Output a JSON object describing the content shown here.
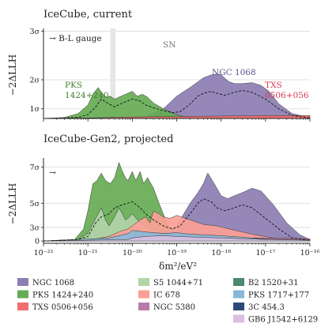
{
  "chart_data": [
    {
      "type": "area",
      "title": "IceCube, current",
      "ylabel": "−2ΔLLH",
      "yticks": [
        {
          "label": "1σ",
          "value": 1
        },
        {
          "label": "2σ",
          "value": 4
        },
        {
          "label": "3σ",
          "value": 9
        }
      ],
      "ylim": [
        0,
        9.3
      ],
      "xlim": [
        1e-22,
        1e-16
      ],
      "xscale": "log",
      "grid": "horizontal",
      "annotations": {
        "gauge": "→ B-L gauge",
        "sn": "SN",
        "ngc": "NGC 1068",
        "pks_line1": "PKS",
        "pks_line2": "1424+240",
        "txs_line1": "TXS",
        "txs_line2": "0506+056"
      },
      "sn_band": [
        3.2e-21,
        4.2e-21
      ],
      "series": [
        {
          "name": "NGC 1068",
          "color": "#8c7eb3",
          "x": [
            1e-22,
            1e-20,
            2e-20,
            5e-20,
            1e-19,
            2e-19,
            4e-19,
            6e-19,
            8e-19,
            1e-18,
            1.5e-18,
            2e-18,
            3e-18,
            5e-18,
            8e-18,
            1.2e-17,
            2e-17,
            4e-17,
            1e-16
          ],
          "y": [
            0,
            0,
            0.2,
            1.0,
            2.3,
            3.2,
            4.2,
            4.5,
            4.6,
            4.5,
            3.8,
            3.6,
            3.6,
            3.7,
            3.4,
            2.8,
            1.5,
            0.5,
            0.1
          ]
        },
        {
          "name": "PKS 1424+240",
          "color": "#66ab54",
          "x": [
            1e-22,
            3e-22,
            6e-22,
            1e-21,
            1.3e-21,
            1.7e-21,
            2.1e-21,
            2.6e-21,
            3.2e-21,
            4e-21,
            5e-21,
            7e-21,
            1e-20,
            1.3e-20,
            1.7e-20,
            2.2e-20,
            3e-20,
            5e-20,
            1e-19,
            2e-19
          ],
          "y": [
            0,
            0.1,
            0.5,
            1.4,
            2.5,
            3.2,
            2.6,
            2.2,
            2.3,
            2.0,
            2.2,
            2.5,
            2.8,
            2.3,
            2.5,
            2.2,
            1.6,
            1.0,
            0.4,
            0
          ]
        },
        {
          "name": "TXS 0506+056",
          "color": "#f26e6e",
          "x": [
            1e-22,
            1e-21,
            1e-20,
            1e-19,
            1e-18,
            1e-17,
            1e-16
          ],
          "y": [
            0,
            0.05,
            0.15,
            0.2,
            0.25,
            0.3,
            0.3
          ]
        }
      ],
      "combined_dashed": {
        "x": [
          1e-22,
          6e-22,
          1e-21,
          1.5e-21,
          2e-21,
          3e-21,
          4e-21,
          6e-21,
          1e-20,
          1.5e-20,
          2e-20,
          3e-20,
          5e-20,
          8e-20,
          1.2e-19,
          2e-19,
          3e-19,
          4e-19,
          6e-19,
          8e-19,
          1.2e-18,
          2e-18,
          3e-18,
          5e-18,
          1e-17,
          2e-17,
          4e-17,
          1e-16
        ],
        "y": [
          0,
          0.1,
          0.4,
          1.2,
          2.0,
          1.5,
          1.2,
          1.6,
          2.0,
          1.8,
          1.4,
          1.1,
          0.8,
          0.6,
          0.7,
          1.5,
          2.3,
          2.6,
          2.8,
          2.6,
          2.4,
          2.7,
          2.9,
          2.7,
          2.0,
          1.0,
          0.3,
          0.05
        ]
      }
    },
    {
      "type": "area",
      "title": "IceCube-Gen2, projected",
      "ylabel": "−2ΔLLH",
      "xlabel": "δm²/eV²",
      "yticks": [
        {
          "label": "0",
          "value": 0
        },
        {
          "label": "3σ",
          "value": 9
        },
        {
          "label": "5σ",
          "value": 25
        },
        {
          "label": "7σ",
          "value": 49
        }
      ],
      "ylim": [
        -1.5,
        55
      ],
      "xlim": [
        1e-22,
        1e-16
      ],
      "xscale": "log",
      "xtick_labels": [
        "10⁻²²",
        "10⁻²¹",
        "10⁻²⁰",
        "10⁻¹⁹",
        "10⁻¹⁸",
        "10⁻¹⁷",
        "10⁻¹⁶"
      ],
      "grid": "horizontal",
      "annotations": {
        "gauge": "→"
      },
      "series": [
        {
          "name": "NGC 1068",
          "color": "#8c7eb3",
          "x": [
            1e-22,
            1e-20,
            3e-20,
            1e-19,
            2e-19,
            3e-19,
            4e-19,
            5e-19,
            7e-19,
            1e-18,
            1.4e-18,
            2e-18,
            3e-18,
            5e-18,
            8e-18,
            1.5e-17,
            3e-17,
            6e-17,
            1e-16
          ],
          "y": [
            0,
            0,
            2,
            10,
            25,
            32,
            38,
            45,
            38,
            30,
            28,
            30,
            32,
            35,
            33,
            24,
            12,
            4,
            1
          ]
        },
        {
          "name": "PKS 1424+240",
          "color": "#66ab54",
          "x": [
            1e-22,
            5e-22,
            8e-22,
            1e-21,
            1.3e-21,
            1.6e-21,
            2e-21,
            2.5e-21,
            3.2e-21,
            4e-21,
            5e-21,
            6e-21,
            7e-21,
            8e-21,
            1e-20,
            1.2e-20,
            1.5e-20,
            1.8e-20,
            2.2e-20,
            3e-20,
            4e-20,
            6e-20,
            1e-19,
            2e-19
          ],
          "y": [
            0,
            1,
            8,
            20,
            38,
            40,
            45,
            40,
            38,
            42,
            52,
            46,
            42,
            40,
            46,
            40,
            46,
            38,
            42,
            35,
            25,
            12,
            3,
            0
          ]
        },
        {
          "name": "S5 1044+71",
          "color": "#b2d4a8",
          "x": [
            1e-22,
            6e-22,
            1e-21,
            1.5e-21,
            2e-21,
            2.5e-21,
            3e-21,
            4e-21,
            5e-21,
            6e-21,
            7e-21,
            8e-21,
            1e-20,
            1.5e-20,
            2e-20,
            3e-20,
            5e-20,
            1e-19
          ],
          "y": [
            0,
            1,
            5,
            15,
            22,
            14,
            10,
            16,
            22,
            18,
            14,
            15,
            18,
            12,
            10,
            6,
            2,
            0
          ]
        },
        {
          "name": "IC 678",
          "color": "#fb9f96",
          "x": [
            1e-22,
            1e-21,
            3e-21,
            5e-21,
            8e-21,
            1e-20,
            1.5e-20,
            2e-20,
            2.5e-20,
            3e-20,
            4e-20,
            5e-20,
            7e-20,
            1e-19,
            2e-19,
            4e-19,
            8e-19,
            1.5e-18,
            3e-18,
            6e-18,
            1.5e-17,
            4e-17,
            1e-16
          ],
          "y": [
            0,
            0.5,
            3,
            6,
            8,
            10,
            14,
            16,
            12,
            20,
            18,
            16,
            15,
            17,
            14,
            11,
            10,
            8,
            6,
            4,
            2,
            1,
            0.5
          ]
        },
        {
          "name": "NGC 5380",
          "color": "#b87ba6",
          "x": [
            1e-22,
            1e-20,
            1e-19,
            1e-18,
            1e-17,
            1e-16
          ],
          "y": [
            0,
            0.5,
            1.5,
            2,
            2,
            1.5
          ]
        },
        {
          "name": "B2 1520+31",
          "color": "#4a8a6e",
          "x": [
            1e-22,
            1e-16
          ],
          "y": [
            0,
            0
          ]
        },
        {
          "name": "PKS 1717+177",
          "color": "#87b8d8",
          "x": [
            1e-22,
            3e-21,
            8e-21,
            1e-20,
            2e-20,
            5e-20,
            1e-19,
            2e-19,
            5e-19,
            1e-18,
            3e-18,
            1e-17,
            1e-16
          ],
          "y": [
            0,
            2,
            5,
            7,
            6,
            5,
            5.5,
            4.5,
            4,
            3.5,
            2.5,
            1.2,
            0.5
          ]
        },
        {
          "name": "3C 454.3",
          "color": "#2d4a7a",
          "x": [
            1e-22,
            1e-16
          ],
          "y": [
            0,
            0
          ]
        },
        {
          "name": "GB6 J1542+6129",
          "color": "#d8bfe0",
          "x": [
            1e-22,
            8e-21,
            1e-20,
            2e-20,
            5e-20,
            1e-19,
            3e-19,
            1e-18,
            3e-18,
            1e-17,
            1e-16
          ],
          "y": [
            0,
            1,
            2,
            3,
            3.5,
            3,
            2.5,
            2,
            1.5,
            1,
            0.5
          ]
        }
      ],
      "combined_dashed": {
        "x": [
          1e-22,
          6e-22,
          1e-21,
          1.5e-21,
          2e-21,
          3e-21,
          4e-21,
          6e-21,
          1e-20,
          1.5e-20,
          2e-20,
          3e-20,
          5e-20,
          8e-20,
          1.2e-19,
          2e-19,
          3e-19,
          4e-19,
          6e-19,
          8e-19,
          1.2e-18,
          2e-18,
          3e-18,
          5e-18,
          1e-17,
          2e-17,
          4e-17,
          1e-16
        ],
        "y": [
          0,
          1,
          3,
          12,
          16,
          18,
          22,
          24,
          26,
          22,
          18,
          14,
          10,
          8,
          10,
          18,
          25,
          28,
          26,
          22,
          20,
          22,
          24,
          22,
          15,
          8,
          2,
          0.5
        ]
      }
    }
  ],
  "legend": {
    "entries": [
      {
        "label": "NGC 1068",
        "color": "#8c7eb3"
      },
      {
        "label": "PKS 1424+240",
        "color": "#66ab54"
      },
      {
        "label": "TXS 0506+056",
        "color": "#f26e6e"
      },
      {
        "label": "S5 1044+71",
        "color": "#b2d4a8"
      },
      {
        "label": "IC 678",
        "color": "#fb9f96"
      },
      {
        "label": "NGC 5380",
        "color": "#b87ba6"
      },
      {
        "label": "B2 1520+31",
        "color": "#4a8a6e"
      },
      {
        "label": "PKS 1717+177",
        "color": "#87b8d8"
      },
      {
        "label": "3C 454.3",
        "color": "#2d4a7a"
      },
      {
        "label": "GB6 J1542+6129",
        "color": "#d8bfe0"
      }
    ]
  }
}
